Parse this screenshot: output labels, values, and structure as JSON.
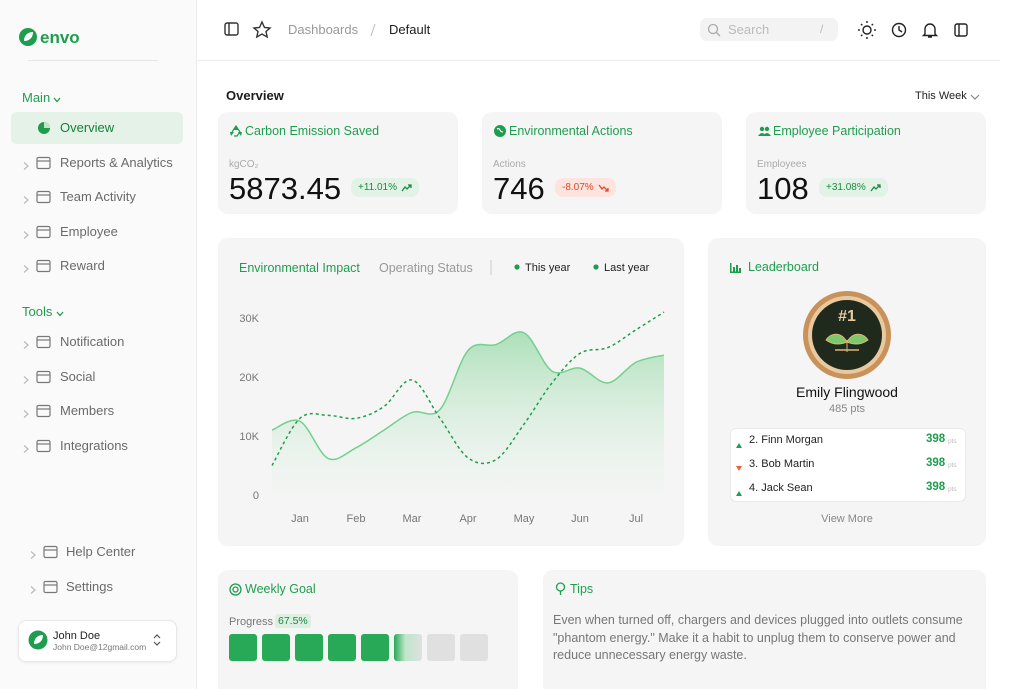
{
  "brand": "envo",
  "sidebar": {
    "main_label": "Main",
    "main_items": [
      "Overview",
      "Reports & Analytics",
      "Team Activity",
      "Employee",
      "Reward"
    ],
    "tools_label": "Tools",
    "tools_items": [
      "Notification",
      "Social",
      "Members",
      "Integrations"
    ],
    "footer_items": [
      "Help Center",
      "Settings"
    ],
    "user": {
      "name": "John Doe",
      "email": "John Doe@12gmail.com"
    }
  },
  "topbar": {
    "breadcrumb": [
      "Dashboards",
      "Default"
    ],
    "search_placeholder": "Search",
    "search_shortcut": "/"
  },
  "overview": {
    "title": "Overview",
    "period": "This Week"
  },
  "stats": [
    {
      "title": "Carbon Emission Saved",
      "label": "kgCO₂",
      "value": 5873.45,
      "change": "+11.01%"
    },
    {
      "title": "Environmental Actions",
      "label": "Actions",
      "value": 746,
      "change": "-8.07%"
    },
    {
      "title": "Employee Participation",
      "label": "Employees",
      "value": 108,
      "change": "+31.08%"
    }
  ],
  "chart_data": {
    "type": "line",
    "tabs": [
      "Environmental Impact",
      "Operating Status"
    ],
    "categories": [
      null,
      "Jan",
      null,
      "Feb",
      null,
      "Mar",
      null,
      "Apr",
      null,
      "May",
      null,
      "Jun",
      null,
      "Jul",
      null
    ],
    "series": [
      {
        "name": "This year",
        "color": "#74d08c",
        "area": true,
        "dashed": false,
        "values": [
          11000,
          12500,
          6200,
          8000,
          11000,
          14000,
          14500,
          24500,
          25500,
          27500,
          21000,
          21500,
          19000,
          22500,
          23700
        ]
      },
      {
        "name": "Last year",
        "color": "#1f9d4f",
        "area": false,
        "dashed": true,
        "values": [
          5000,
          13000,
          13500,
          13000,
          15000,
          19500,
          13000,
          6300,
          6000,
          12000,
          19000,
          24000,
          25000,
          28000,
          31000
        ]
      }
    ],
    "ylim": [
      0,
      33000
    ],
    "yticks": [
      0,
      {
        "value": 10000,
        "label": "10K"
      },
      {
        "value": 20000,
        "label": "20K"
      },
      {
        "value": 30000,
        "label": "30K"
      }
    ],
    "grid": false
  },
  "leaderboard": {
    "title": "Leaderboard",
    "top": {
      "badge": "#1",
      "name": "Emily Flingwood",
      "points": "485 pts"
    },
    "unit": "pts",
    "rows": [
      {
        "name": "2. Finn Morgan",
        "score": 398,
        "trend": "up"
      },
      {
        "name": "3. Bob Martin",
        "score": 398,
        "trend": "down"
      },
      {
        "name": "4. Jack Sean",
        "score": 398,
        "trend": "up"
      }
    ],
    "more": "View More"
  },
  "weekly_goal": {
    "title": "Weekly Goal",
    "progress_label": "Progress",
    "progress": {
      "value": 67.5,
      "label": "67.5%"
    }
  },
  "tips": {
    "title": "Tips",
    "text": "Even when turned off, chargers and devices plugged into outlets consume \"phantom energy.\" Make it a habit to unplug them to conserve power and reduce unnecessary energy waste."
  }
}
